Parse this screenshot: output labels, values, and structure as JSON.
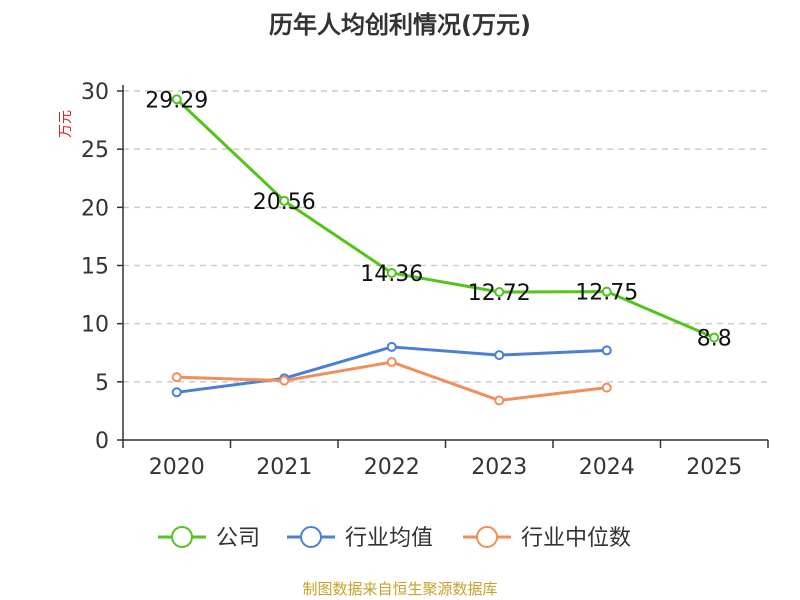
{
  "chart_data": {
    "type": "line",
    "title": "历年人均创利情况(万元)",
    "ylabel": "万元",
    "xlabel": "",
    "categories": [
      "2020",
      "2021",
      "2022",
      "2023",
      "2024",
      "2025"
    ],
    "ylim": [
      0,
      30
    ],
    "yticks": [
      0,
      5,
      10,
      15,
      20,
      25,
      30
    ],
    "grid": true,
    "legend_position": "bottom",
    "series": [
      {
        "name": "公司",
        "color": "#52c41a",
        "values": [
          29.29,
          20.56,
          14.36,
          12.72,
          12.75,
          8.8
        ],
        "labels": [
          "29.29",
          "20.56",
          "14.36",
          "12.72",
          "12.75",
          "8.8"
        ]
      },
      {
        "name": "行业均值",
        "color": "#4a7fd6",
        "values": [
          4.1,
          5.3,
          8.0,
          7.3,
          7.7,
          null
        ]
      },
      {
        "name": "行业中位数",
        "color": "#f28e5b",
        "values": [
          5.4,
          5.1,
          6.7,
          3.4,
          4.5,
          null
        ]
      }
    ],
    "source": "制图数据来自恒生聚源数据库",
    "colors": {
      "unit": "#e02020",
      "source": "#c8a02a",
      "axis": "#333333",
      "grid": "#cccccc"
    }
  }
}
